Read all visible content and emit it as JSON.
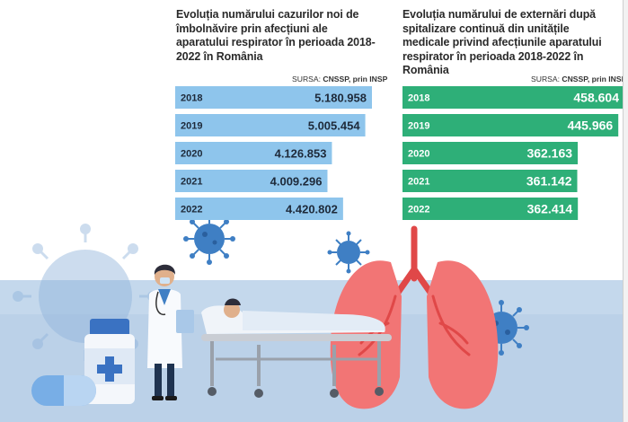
{
  "charts": [
    {
      "title": "Evoluția numărului cazurilor noi de îmbolnăvire prin afecțiuni ale aparatului respirator în perioada 2018-2022 în România",
      "source_label": "SURSA:",
      "source_value": "CNSSP, prin INSP",
      "color": "#8ec5ec"
    },
    {
      "title": "Evoluția numărului de externări după spitalizare continuă din unitățile medicale privind afecțiunile aparatului respirator în perioada 2018-2022 în România",
      "source_label": "SURSA:",
      "source_value": "CNSSP, prin INSP",
      "color": "#2eaf78"
    }
  ],
  "chart_data": [
    {
      "type": "bar",
      "orientation": "horizontal",
      "categories": [
        "2018",
        "2019",
        "2020",
        "2021",
        "2022"
      ],
      "values": [
        5180958,
        5005454,
        4126853,
        4009296,
        4420802
      ],
      "value_labels": [
        "5.180.958",
        "5.005.454",
        "4.126.853",
        "4.009.296",
        "4.420.802"
      ],
      "title": "Evoluția numărului cazurilor noi de îmbolnăvire prin afecțiuni ale aparatului respirator în perioada 2018-2022 în România",
      "xlim": [
        0,
        5180958
      ],
      "grid": false,
      "bar_color": "#8ec5ec"
    },
    {
      "type": "bar",
      "orientation": "horizontal",
      "categories": [
        "2018",
        "2019",
        "2020",
        "2021",
        "2022"
      ],
      "values": [
        458604,
        445966,
        362163,
        361142,
        362414
      ],
      "value_labels": [
        "458.604",
        "445.966",
        "362.163",
        "361.142",
        "362.414"
      ],
      "title": "Evoluția numărului de externări după spitalizare continuă din unitățile medicale privind afecțiunile aparatului respirator în perioada 2018-2022 în România",
      "xlim": [
        0,
        458604
      ],
      "grid": false,
      "bar_color": "#2eaf78"
    }
  ],
  "illustration": {
    "description_icons": [
      "virus-icon",
      "doctor-icon",
      "patient-on-stretcher-icon",
      "lungs-icon",
      "medicine-bottle-icon",
      "capsule-icon"
    ],
    "colors": {
      "ground": "#bcd3ea",
      "virus": "#3f7fc4",
      "lungs": "#f06a6a",
      "bottle_cap": "#3a72c2",
      "capsule": "#78aee6"
    }
  }
}
